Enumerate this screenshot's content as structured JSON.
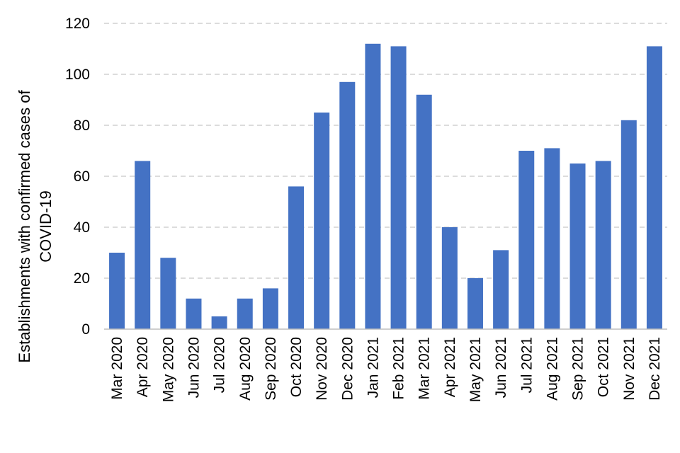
{
  "chart_data": {
    "type": "bar",
    "title": "",
    "xlabel": "",
    "ylabel_lines": [
      "Establishments with confirmed cases of",
      "COVID-19"
    ],
    "ylim": [
      0,
      120
    ],
    "yticks": [
      0,
      20,
      40,
      60,
      80,
      100,
      120
    ],
    "grid": true,
    "bar_color": "#4472C4",
    "categories": [
      "Mar 2020",
      "Apr 2020",
      "May 2020",
      "Jun 2020",
      "Jul 2020",
      "Aug 2020",
      "Sep 2020",
      "Oct 2020",
      "Nov 2020",
      "Dec 2020",
      "Jan 2021",
      "Feb 2021",
      "Mar 2021",
      "Apr 2021",
      "May 2021",
      "Jun 2021",
      "Jul 2021",
      "Aug 2021",
      "Sep 2021",
      "Oct 2021",
      "Nov 2021",
      "Dec 2021"
    ],
    "values": [
      30,
      66,
      28,
      12,
      5,
      12,
      16,
      56,
      85,
      97,
      112,
      111,
      92,
      40,
      20,
      31,
      70,
      71,
      65,
      66,
      82,
      111
    ]
  }
}
